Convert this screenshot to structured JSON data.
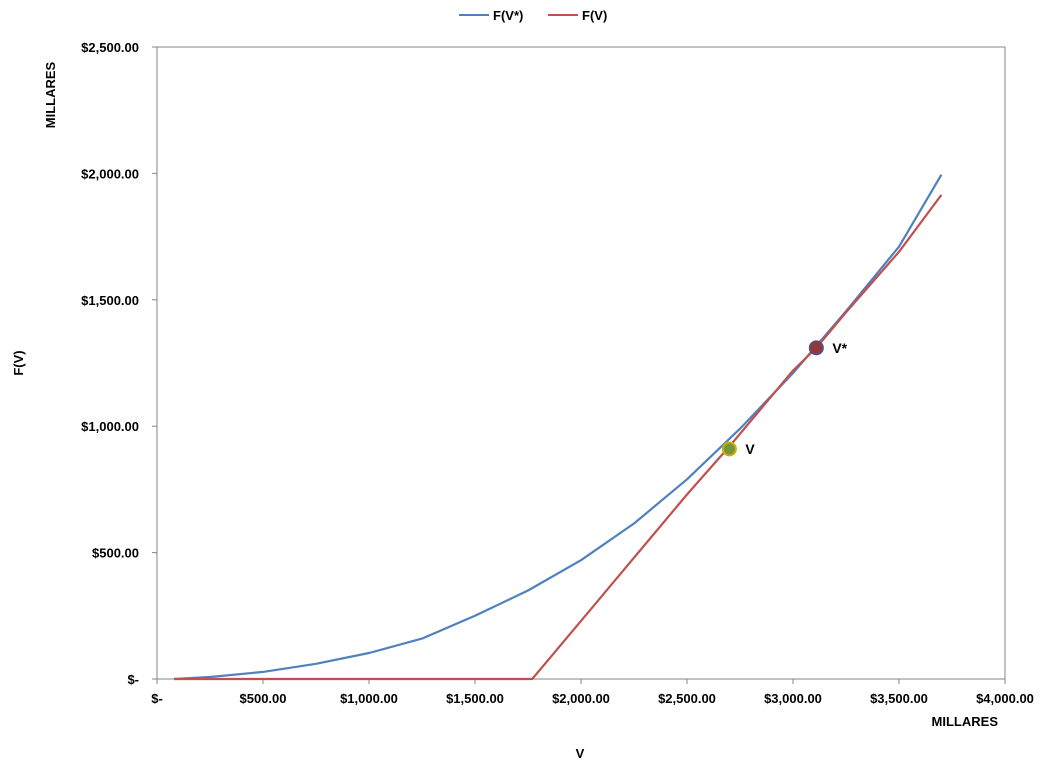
{
  "chart_data": {
    "type": "line",
    "xlabel": "V",
    "ylabel": "F(V)",
    "x_unit_label": "MILLARES",
    "y_unit_label": "MILLARES",
    "xlim": [
      0,
      4000
    ],
    "ylim": [
      0,
      2500
    ],
    "x_ticks": [
      0,
      500,
      1000,
      1500,
      2000,
      2500,
      3000,
      3500,
      4000
    ],
    "y_ticks": [
      0,
      500,
      1000,
      1500,
      2000,
      2500
    ],
    "x_tick_labels": [
      "$-",
      "$500.00",
      "$1,000.00",
      "$1,500.00",
      "$2,000.00",
      "$2,500.00",
      "$3,000.00",
      "$3,500.00",
      "$4,000.00"
    ],
    "y_tick_labels": [
      "$-",
      "$500.00",
      "$1,000.00",
      "$1,500.00",
      "$2,000.00",
      "$2,500.00"
    ],
    "grid": false,
    "legend_position": "top-center",
    "series": [
      {
        "name": "F(V*)",
        "color": "#4f81bd",
        "x": [
          80,
          250,
          500,
          750,
          1000,
          1250,
          1500,
          1750,
          2000,
          2250,
          2500,
          2750,
          3000,
          3250,
          3500,
          3700
        ],
        "y": [
          0,
          8,
          28,
          60,
          103,
          160,
          250,
          350,
          470,
          615,
          790,
          990,
          1210,
          1455,
          1710,
          1995
        ]
      },
      {
        "name": "F(V)",
        "color": "#c0504d",
        "x": [
          80,
          500,
          1000,
          1500,
          1770,
          1800,
          2000,
          2250,
          2500,
          2700,
          3000,
          3110,
          3250,
          3500,
          3700
        ],
        "y": [
          0,
          0,
          0,
          0,
          0,
          30,
          230,
          480,
          730,
          920,
          1220,
          1310,
          1450,
          1690,
          1915
        ]
      }
    ],
    "annotations": [
      {
        "label": "V",
        "x": 2700,
        "y": 910,
        "fill": "#77933c",
        "stroke": "#c8b400"
      },
      {
        "label": "V*",
        "x": 3110,
        "y": 1310,
        "fill": "#953735",
        "stroke": "#5f497a"
      }
    ]
  }
}
